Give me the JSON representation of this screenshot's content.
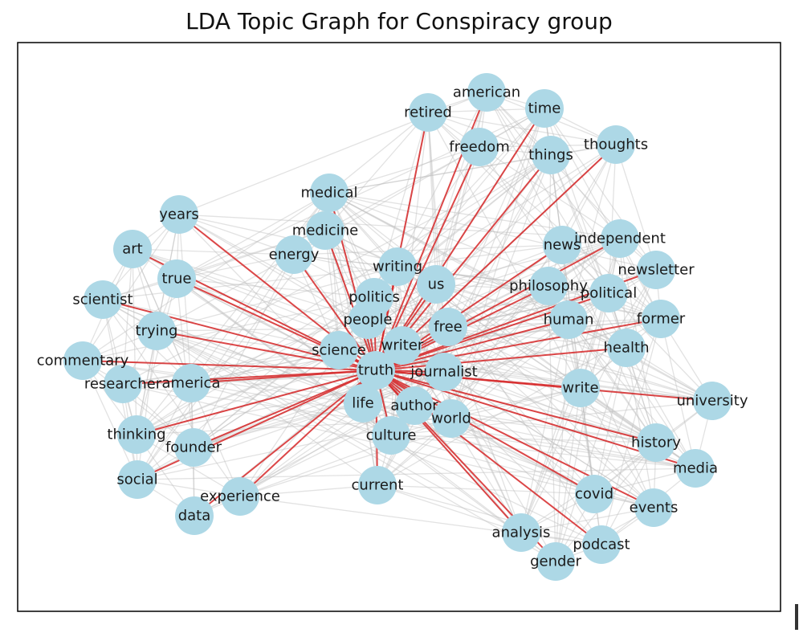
{
  "title": "LDA Topic Graph for Conspiracy group",
  "colors": {
    "node": "#add8e6",
    "hub_edge": "#d62728",
    "background_edge": "#bfbfbf",
    "frame": "#000000"
  },
  "hub_node": "truth",
  "nodes": [
    "american",
    "retired",
    "time",
    "freedom",
    "things",
    "thoughts",
    "medical",
    "years",
    "medicine",
    "independent",
    "news",
    "art",
    "energy",
    "writing",
    "newsletter",
    "true",
    "us",
    "philosophy",
    "political",
    "scientist",
    "politics",
    "former",
    "people",
    "human",
    "free",
    "trying",
    "health",
    "science",
    "writer",
    "commentary",
    "truth",
    "journalist",
    "researcher",
    "america",
    "write",
    "life",
    "author",
    "university",
    "world",
    "thinking",
    "culture",
    "history",
    "founder",
    "media",
    "social",
    "experience",
    "current",
    "covid",
    "events",
    "data",
    "analysis",
    "podcast",
    "gender"
  ]
}
